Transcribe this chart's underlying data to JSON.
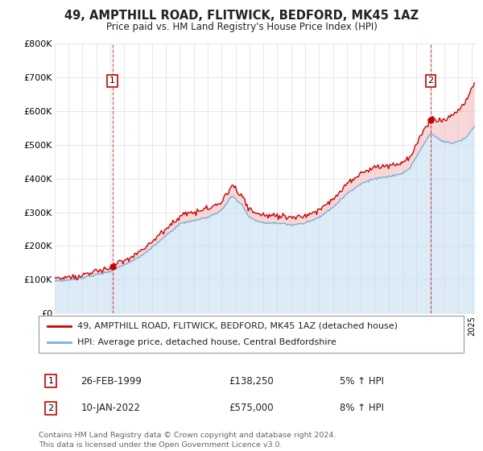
{
  "title": "49, AMPTHILL ROAD, FLITWICK, BEDFORD, MK45 1AZ",
  "subtitle": "Price paid vs. HM Land Registry's House Price Index (HPI)",
  "ylim": [
    0,
    800000
  ],
  "yticks": [
    0,
    100000,
    200000,
    300000,
    400000,
    500000,
    600000,
    700000,
    800000
  ],
  "ytick_labels": [
    "£0",
    "£100K",
    "£200K",
    "£300K",
    "£400K",
    "£500K",
    "£600K",
    "£700K",
    "£800K"
  ],
  "sale1_date": "26-FEB-1999",
  "sale1_price": 138250,
  "sale1_hpi": "5% ↑ HPI",
  "sale2_date": "10-JAN-2022",
  "sale2_price": 575000,
  "sale2_hpi": "8% ↑ HPI",
  "sale1_price_str": "£138,250",
  "sale2_price_str": "£575,000",
  "legend_line1": "49, AMPTHILL ROAD, FLITWICK, BEDFORD, MK45 1AZ (detached house)",
  "legend_line2": "HPI: Average price, detached house, Central Bedfordshire",
  "footer": "Contains HM Land Registry data © Crown copyright and database right 2024.\nThis data is licensed under the Open Government Licence v3.0.",
  "line_color_red": "#cc0000",
  "line_color_blue": "#7ab0d4",
  "fill_color_blue": "#c5dff0",
  "sale1_x": 1999.15,
  "sale2_x": 2022.03,
  "background_color": "#ffffff",
  "grid_color": "#dddddd",
  "xlim_left": 1995.0,
  "xlim_right": 2025.3
}
